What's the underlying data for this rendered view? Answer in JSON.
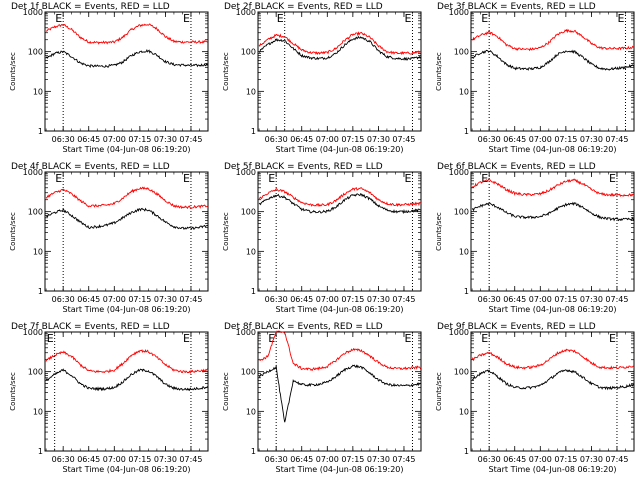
{
  "colors": {
    "events": "#000000",
    "lld": "#ff0000",
    "axes": "#000000",
    "background": "#ffffff"
  },
  "chart_data": [
    {
      "type": "line",
      "title": "Det 1f BLACK = Events, RED = LLD",
      "xlabel": "Start Time (04-Jun-08 06:19:20)",
      "ylabel": "Counts/sec",
      "yscale": "log",
      "ylim": [
        1,
        1000
      ],
      "yticks": [
        "1",
        "10",
        "100",
        "1000"
      ],
      "xlim": [
        "06:19:20",
        "07:55:00"
      ],
      "xticks": [
        "06:30",
        "06:45",
        "07:00",
        "07:15",
        "07:30",
        "07:45"
      ],
      "markers": [
        {
          "label": "E",
          "time": "06:30"
        },
        {
          "label": "E",
          "time": "07:45"
        }
      ],
      "x": [
        "06:20",
        "06:25",
        "06:30",
        "06:35",
        "06:40",
        "06:45",
        "06:50",
        "06:55",
        "07:00",
        "07:05",
        "07:10",
        "07:15",
        "07:20",
        "07:25",
        "07:30",
        "07:35",
        "07:40",
        "07:45",
        "07:50",
        "07:55"
      ],
      "series": [
        {
          "name": "LLD",
          "values": [
            330,
            420,
            480,
            360,
            230,
            175,
            170,
            170,
            175,
            230,
            360,
            460,
            490,
            380,
            240,
            180,
            175,
            175,
            175,
            175
          ]
        },
        {
          "name": "Events",
          "values": [
            68,
            90,
            100,
            75,
            52,
            44,
            43,
            43,
            45,
            55,
            80,
            100,
            105,
            82,
            56,
            47,
            46,
            45,
            45,
            48
          ]
        }
      ]
    },
    {
      "type": "line",
      "title": "Det 2f BLACK = Events, RED = LLD",
      "xlabel": "Start Time (04-Jun-08 06:19:20)",
      "ylabel": "Counts/sec",
      "yscale": "log",
      "ylim": [
        1,
        1000
      ],
      "yticks": [
        "1",
        "10",
        "100",
        "1000"
      ],
      "xlim": [
        "06:19:20",
        "07:55:00"
      ],
      "xticks": [
        "06:30",
        "06:45",
        "07:00",
        "07:15",
        "07:30",
        "07:45"
      ],
      "markers": [
        {
          "label": "E",
          "time": "06:35"
        },
        {
          "label": "E",
          "time": "07:50"
        }
      ],
      "x": [
        "06:20",
        "06:25",
        "06:30",
        "06:35",
        "06:40",
        "06:45",
        "06:50",
        "06:55",
        "07:00",
        "07:05",
        "07:10",
        "07:15",
        "07:20",
        "07:25",
        "07:30",
        "07:35",
        "07:40",
        "07:45",
        "07:50",
        "07:55"
      ],
      "series": [
        {
          "name": "LLD",
          "values": [
            140,
            200,
            260,
            240,
            160,
            110,
            95,
            92,
            95,
            120,
            190,
            270,
            290,
            230,
            140,
            100,
            92,
            92,
            92,
            100
          ]
        },
        {
          "name": "Events",
          "values": [
            100,
            150,
            200,
            190,
            120,
            80,
            70,
            67,
            70,
            90,
            145,
            210,
            230,
            180,
            105,
            75,
            68,
            66,
            66,
            75
          ]
        }
      ]
    },
    {
      "type": "line",
      "title": "Det 3f BLACK = Events, RED = LLD",
      "xlabel": "Start Time (04-Jun-08 06:19:20)",
      "ylabel": "Counts/sec",
      "yscale": "log",
      "ylim": [
        1,
        1000
      ],
      "yticks": [
        "1",
        "10",
        "100",
        "1000"
      ],
      "xlim": [
        "06:19:20",
        "07:55:00"
      ],
      "xticks": [
        "06:30",
        "06:45",
        "07:00",
        "07:15",
        "07:30",
        "07:45"
      ],
      "markers": [
        {
          "label": "E",
          "time": "06:30"
        },
        {
          "label": "E",
          "time": "07:50"
        }
      ],
      "x": [
        "06:20",
        "06:25",
        "06:30",
        "06:35",
        "06:40",
        "06:45",
        "06:50",
        "06:55",
        "07:00",
        "07:05",
        "07:10",
        "07:15",
        "07:20",
        "07:25",
        "07:30",
        "07:35",
        "07:40",
        "07:45",
        "07:50",
        "07:55"
      ],
      "series": [
        {
          "name": "LLD",
          "values": [
            200,
            260,
            310,
            240,
            150,
            120,
            115,
            115,
            125,
            170,
            270,
            340,
            330,
            240,
            160,
            125,
            120,
            120,
            122,
            130
          ]
        },
        {
          "name": "Events",
          "values": [
            70,
            95,
            105,
            75,
            48,
            38,
            37,
            37,
            40,
            55,
            85,
            105,
            100,
            72,
            48,
            38,
            36,
            38,
            40,
            45
          ]
        }
      ]
    },
    {
      "type": "line",
      "title": "Det 4f BLACK = Events, RED = LLD",
      "xlabel": "Start Time (04-Jun-08 06:19:20)",
      "ylabel": "Counts/sec",
      "yscale": "log",
      "ylim": [
        1,
        1000
      ],
      "yticks": [
        "1",
        "10",
        "100",
        "1000"
      ],
      "xlim": [
        "06:19:20",
        "07:55:00"
      ],
      "xticks": [
        "06:30",
        "06:45",
        "07:00",
        "07:15",
        "07:30",
        "07:45"
      ],
      "markers": [
        {
          "label": "E",
          "time": "06:30"
        },
        {
          "label": "E",
          "time": "07:45"
        }
      ],
      "x": [
        "06:20",
        "06:25",
        "06:30",
        "06:35",
        "06:40",
        "06:45",
        "06:50",
        "06:55",
        "07:00",
        "07:05",
        "07:10",
        "07:15",
        "07:20",
        "07:25",
        "07:30",
        "07:35",
        "07:40",
        "07:45",
        "07:50",
        "07:55"
      ],
      "series": [
        {
          "name": "LLD",
          "values": [
            230,
            300,
            360,
            280,
            190,
            140,
            140,
            145,
            160,
            220,
            320,
            390,
            380,
            280,
            190,
            140,
            130,
            130,
            135,
            140
          ]
        },
        {
          "name": "Events",
          "values": [
            75,
            95,
            110,
            80,
            55,
            40,
            42,
            45,
            52,
            70,
            95,
            115,
            110,
            80,
            55,
            42,
            38,
            38,
            40,
            45
          ]
        }
      ]
    },
    {
      "type": "line",
      "title": "Det 5f BLACK = Events, RED = LLD",
      "xlabel": "Start Time (04-Jun-08 06:19:20)",
      "ylabel": "Counts/sec",
      "yscale": "log",
      "ylim": [
        1,
        1000
      ],
      "yticks": [
        "1",
        "10",
        "100",
        "1000"
      ],
      "xlim": [
        "06:19:20",
        "07:55:00"
      ],
      "xticks": [
        "06:30",
        "06:45",
        "07:00",
        "07:15",
        "07:30",
        "07:45"
      ],
      "markers": [
        {
          "label": "E",
          "time": "06:30"
        },
        {
          "label": "E",
          "time": "07:50"
        }
      ],
      "x": [
        "06:20",
        "06:25",
        "06:30",
        "06:35",
        "06:40",
        "06:45",
        "06:50",
        "06:55",
        "07:00",
        "07:05",
        "07:10",
        "07:15",
        "07:20",
        "07:25",
        "07:30",
        "07:35",
        "07:40",
        "07:45",
        "07:50",
        "07:55"
      ],
      "series": [
        {
          "name": "LLD",
          "values": [
            210,
            290,
            360,
            320,
            230,
            170,
            150,
            145,
            150,
            190,
            280,
            370,
            380,
            300,
            200,
            160,
            150,
            150,
            155,
            160
          ]
        },
        {
          "name": "Events",
          "values": [
            150,
            210,
            260,
            230,
            160,
            115,
            100,
            98,
            102,
            130,
            195,
            260,
            270,
            210,
            140,
            110,
            100,
            100,
            105,
            110
          ]
        }
      ]
    },
    {
      "type": "line",
      "title": "Det 6f BLACK = Events, RED = LLD",
      "xlabel": "Start Time (04-Jun-08 06:19:20)",
      "ylabel": "Counts/sec",
      "yscale": "log",
      "ylim": [
        1,
        1000
      ],
      "yticks": [
        "1",
        "10",
        "100",
        "1000"
      ],
      "xlim": [
        "06:19:20",
        "07:55:00"
      ],
      "xticks": [
        "06:30",
        "06:45",
        "07:00",
        "07:15",
        "07:30",
        "07:45"
      ],
      "markers": [
        {
          "label": "E",
          "time": "06:30"
        },
        {
          "label": "E",
          "time": "07:45"
        }
      ],
      "x": [
        "06:20",
        "06:25",
        "06:30",
        "06:35",
        "06:40",
        "06:45",
        "06:50",
        "06:55",
        "07:00",
        "07:05",
        "07:10",
        "07:15",
        "07:20",
        "07:25",
        "07:30",
        "07:35",
        "07:40",
        "07:45",
        "07:50",
        "07:55"
      ],
      "series": [
        {
          "name": "LLD",
          "values": [
            420,
            550,
            620,
            500,
            360,
            290,
            270,
            270,
            280,
            340,
            460,
            580,
            620,
            500,
            360,
            280,
            265,
            262,
            262,
            265
          ]
        },
        {
          "name": "Events",
          "values": [
            110,
            140,
            160,
            130,
            95,
            76,
            72,
            72,
            75,
            90,
            120,
            150,
            160,
            130,
            92,
            72,
            66,
            64,
            64,
            66
          ]
        }
      ]
    },
    {
      "type": "line",
      "title": "Det 7f BLACK = Events, RED = LLD",
      "xlabel": "Start Time (04-Jun-08 06:19:20)",
      "ylabel": "Counts/sec",
      "yscale": "log",
      "ylim": [
        1,
        1000
      ],
      "yticks": [
        "1",
        "10",
        "100",
        "1000"
      ],
      "xlim": [
        "06:19:20",
        "07:55:00"
      ],
      "xticks": [
        "06:30",
        "06:45",
        "07:00",
        "07:15",
        "07:30",
        "07:45"
      ],
      "markers": [
        {
          "label": "E",
          "time": "06:25"
        },
        {
          "label": "E",
          "time": "07:45"
        }
      ],
      "x": [
        "06:20",
        "06:25",
        "06:30",
        "06:35",
        "06:40",
        "06:45",
        "06:50",
        "06:55",
        "07:00",
        "07:05",
        "07:10",
        "07:15",
        "07:20",
        "07:25",
        "07:30",
        "07:35",
        "07:40",
        "07:45",
        "07:50",
        "07:55"
      ],
      "series": [
        {
          "name": "LLD",
          "values": [
            190,
            260,
            310,
            240,
            150,
            105,
            100,
            100,
            110,
            160,
            260,
            340,
            320,
            230,
            150,
            110,
            100,
            100,
            105,
            110
          ]
        },
        {
          "name": "Events",
          "values": [
            60,
            85,
            110,
            80,
            50,
            38,
            37,
            37,
            40,
            55,
            85,
            110,
            105,
            75,
            48,
            38,
            36,
            36,
            38,
            42
          ]
        }
      ]
    },
    {
      "type": "line",
      "title": "Det 8f BLACK = Events, RED = LLD",
      "xlabel": "Start Time (04-Jun-08 06:19:20)",
      "ylabel": "Counts/sec",
      "yscale": "log",
      "ylim": [
        1,
        1000
      ],
      "yticks": [
        "1",
        "10",
        "100",
        "1000"
      ],
      "xlim": [
        "06:19:20",
        "07:55:00"
      ],
      "xticks": [
        "06:30",
        "06:45",
        "07:00",
        "07:15",
        "07:30",
        "07:45"
      ],
      "markers": [
        {
          "label": "E",
          "time": "06:30"
        },
        {
          "label": "E",
          "time": "07:50"
        }
      ],
      "x": [
        "06:20",
        "06:25",
        "06:30",
        "06:35",
        "06:40",
        "06:45",
        "06:50",
        "06:55",
        "07:00",
        "07:05",
        "07:10",
        "07:15",
        "07:20",
        "07:25",
        "07:30",
        "07:35",
        "07:40",
        "07:45",
        "07:50",
        "07:55"
      ],
      "series": [
        {
          "name": "LLD",
          "values": [
            190,
            240,
            1000,
            1000,
            160,
            120,
            115,
            120,
            135,
            190,
            290,
            360,
            340,
            250,
            170,
            130,
            120,
            120,
            125,
            130
          ]
        },
        {
          "name": "Events",
          "values": [
            75,
            100,
            130,
            5,
            60,
            47,
            46,
            48,
            54,
            75,
            110,
            140,
            130,
            92,
            62,
            48,
            45,
            44,
            46,
            50
          ]
        }
      ]
    },
    {
      "type": "line",
      "title": "Det 9f BLACK = Events, RED = LLD",
      "xlabel": "Start Time (04-Jun-08 06:19:20)",
      "ylabel": "Counts/sec",
      "yscale": "log",
      "ylim": [
        1,
        1000
      ],
      "yticks": [
        "1",
        "10",
        "100",
        "1000"
      ],
      "xlim": [
        "06:19:20",
        "07:55:00"
      ],
      "xticks": [
        "06:30",
        "06:45",
        "07:00",
        "07:15",
        "07:30",
        "07:45"
      ],
      "markers": [
        {
          "label": "E",
          "time": "06:30"
        },
        {
          "label": "E",
          "time": "07:45"
        }
      ],
      "x": [
        "06:20",
        "06:25",
        "06:30",
        "06:35",
        "06:40",
        "06:45",
        "06:50",
        "06:55",
        "07:00",
        "07:05",
        "07:10",
        "07:15",
        "07:20",
        "07:25",
        "07:30",
        "07:35",
        "07:40",
        "07:45",
        "07:50",
        "07:55"
      ],
      "series": [
        {
          "name": "LLD",
          "values": [
            200,
            260,
            300,
            230,
            160,
            130,
            125,
            130,
            145,
            200,
            290,
            350,
            330,
            240,
            165,
            130,
            125,
            125,
            130,
            140
          ]
        },
        {
          "name": "Events",
          "values": [
            65,
            90,
            105,
            75,
            50,
            40,
            39,
            40,
            45,
            62,
            90,
            110,
            100,
            72,
            50,
            40,
            38,
            40,
            42,
            48
          ]
        }
      ]
    }
  ]
}
